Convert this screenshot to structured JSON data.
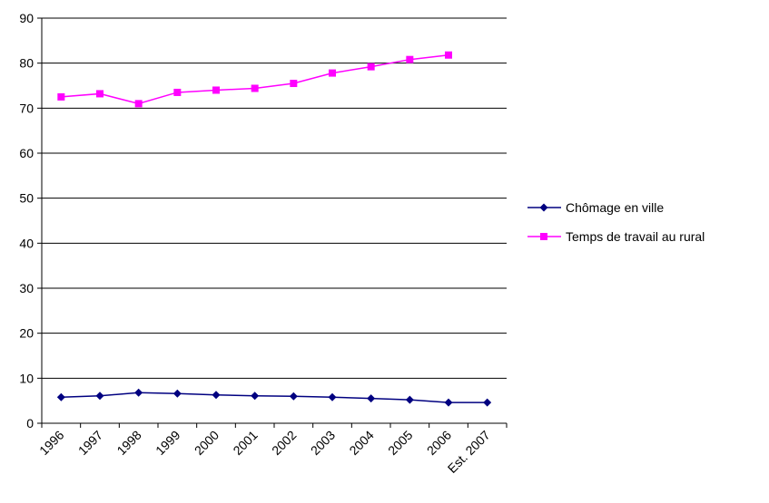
{
  "chart_data": {
    "type": "line",
    "categories": [
      "1996",
      "1997",
      "1998",
      "1999",
      "2000",
      "2001",
      "2002",
      "2003",
      "2004",
      "2005",
      "2006",
      "Est. 2007"
    ],
    "series": [
      {
        "name": "Chômage en ville",
        "color": "#000080",
        "marker": "diamond",
        "values": [
          5.8,
          6.1,
          6.8,
          6.6,
          6.3,
          6.1,
          6.0,
          5.8,
          5.5,
          5.2,
          4.6,
          4.6
        ]
      },
      {
        "name": "Temps de travail au rural",
        "color": "#ff00ff",
        "marker": "square",
        "values": [
          72.5,
          73.2,
          71.0,
          73.5,
          74.0,
          74.4,
          75.5,
          77.8,
          79.2,
          80.8,
          81.8,
          null
        ]
      }
    ],
    "ylim": [
      0,
      90
    ],
    "yticks": [
      "0",
      "10",
      "20",
      "30",
      "40",
      "50",
      "60",
      "70",
      "80",
      "90"
    ],
    "grid": true,
    "legend_position": "right",
    "title": "",
    "xlabel": "",
    "ylabel": ""
  }
}
